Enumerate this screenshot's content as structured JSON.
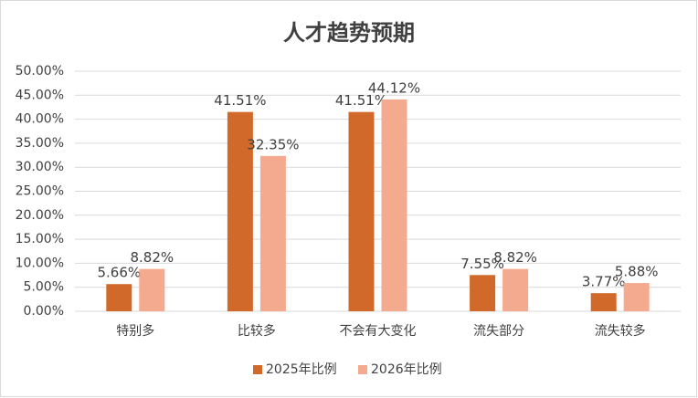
{
  "chart_data": {
    "type": "bar",
    "title": "人才趋势预期",
    "categories": [
      "特别多",
      "比较多",
      "不会有大变化",
      "流失部分",
      "流失较多"
    ],
    "series": [
      {
        "name": "2025年比例",
        "color": "#d0692a",
        "values": [
          5.66,
          41.51,
          41.51,
          7.55,
          3.77
        ],
        "value_labels": [
          "5.66%",
          "41.51%",
          "41.51%",
          "7.55%",
          "3.77%"
        ]
      },
      {
        "name": "2026年比例",
        "color": "#f4aa8e",
        "values": [
          8.82,
          32.35,
          44.12,
          8.82,
          5.88
        ],
        "value_labels": [
          "8.82%",
          "32.35%",
          "44.12%",
          "8.82%",
          "5.88%"
        ]
      }
    ],
    "ylim": [
      0,
      50
    ],
    "yticks": [
      {
        "value": 0,
        "label": "0.00%"
      },
      {
        "value": 5,
        "label": "5.00%"
      },
      {
        "value": 10,
        "label": "10.00%"
      },
      {
        "value": 15,
        "label": "15.00%"
      },
      {
        "value": 20,
        "label": "20.00%"
      },
      {
        "value": 25,
        "label": "25.00%"
      },
      {
        "value": 30,
        "label": "30.00%"
      },
      {
        "value": 35,
        "label": "35.00%"
      },
      {
        "value": 40,
        "label": "40.00%"
      },
      {
        "value": 45,
        "label": "45.00%"
      },
      {
        "value": 50,
        "label": "50.00%"
      }
    ],
    "grid": true,
    "legend": "bottom"
  }
}
